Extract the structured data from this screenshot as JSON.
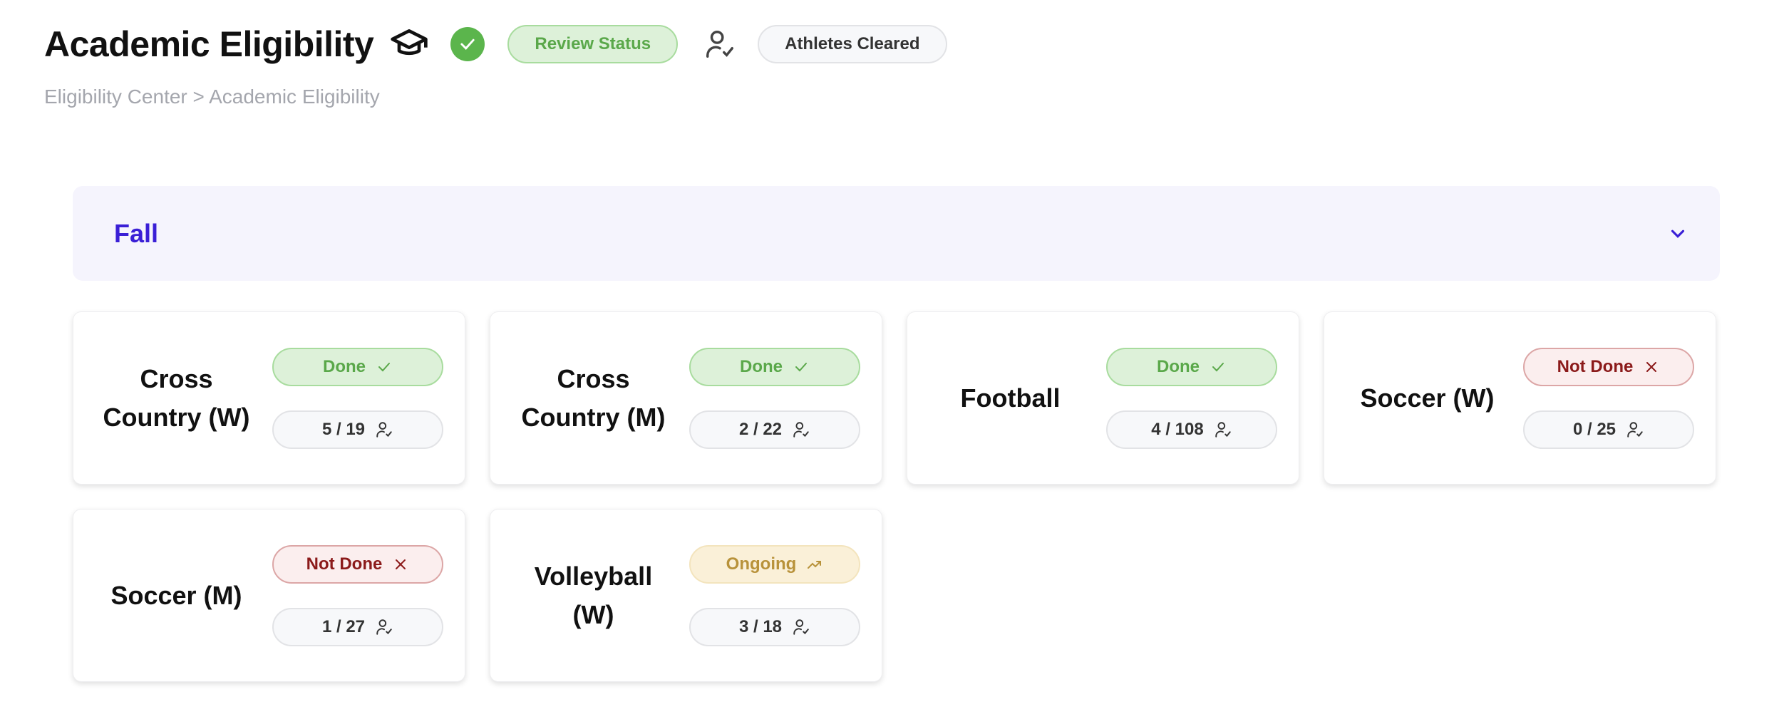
{
  "header": {
    "title": "Academic Eligibility",
    "review_status": "Review Status",
    "athletes_cleared": "Athletes Cleared"
  },
  "breadcrumb": "Eligibility Center > Academic Eligibility",
  "colors": {
    "accent": "#3a1fd6",
    "done": "#5aa84a",
    "not_done": "#8b1a1a",
    "ongoing": "#b8923a"
  },
  "section": {
    "label": "Fall",
    "icon": "chevron-down-icon"
  },
  "cards": [
    {
      "name": "Cross Country (W)",
      "status": "Done",
      "status_type": "done",
      "count": "5 / 19"
    },
    {
      "name": "Cross Country (M)",
      "status": "Done",
      "status_type": "done",
      "count": "2 / 22"
    },
    {
      "name": "Football",
      "status": "Done",
      "status_type": "done",
      "count": "4 / 108"
    },
    {
      "name": "Soccer (W)",
      "status": "Not Done",
      "status_type": "notdone",
      "count": "0 / 25"
    },
    {
      "name": "Soccer (M)",
      "status": "Not Done",
      "status_type": "notdone",
      "count": "1 / 27"
    },
    {
      "name": "Volleyball (W)",
      "status": "Ongoing",
      "status_type": "ongoing",
      "count": "3 / 18"
    }
  ]
}
